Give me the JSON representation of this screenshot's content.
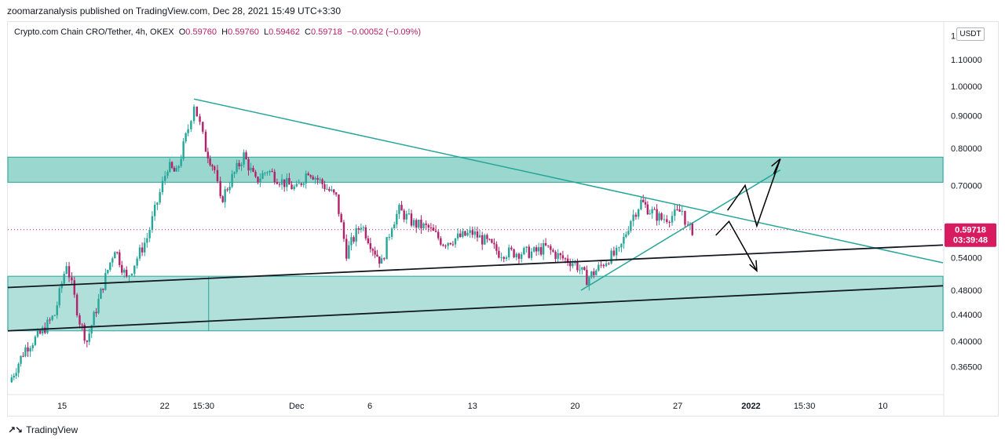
{
  "header": {
    "publisher": "zoomarzanalysis published on TradingView.com, Dec 28, 2021 15:49 UTC+3:30"
  },
  "legend": {
    "symbol": "Crypto.com Chain CRO/Tether, 4h, OKEX",
    "open_key": "O",
    "open": "0.59760",
    "high_key": "H",
    "high": "0.59760",
    "low_key": "L",
    "low": "0.59462",
    "close_key": "C",
    "close": "0.59718",
    "change": "−0.00052 (−0.09%)"
  },
  "axis": {
    "unit_button": "USDT"
  },
  "price_label": {
    "price": "0.59718",
    "countdown": "03:39:48"
  },
  "footer": {
    "brand": "TradingView"
  },
  "colors": {
    "bull": "#26a69a",
    "bear": "#b2216a",
    "zone_fill": "#8fd3c9",
    "trendline": "#26a69a",
    "support": "#131722",
    "price_tag": "#d81b60"
  },
  "chart_data": {
    "type": "candlestick",
    "symbol": "CRO/USDT",
    "interval": "4h",
    "y_scale": "log",
    "ylim": [
      0.33,
      1.26
    ],
    "y_ticks": [
      "1.20000",
      "1.10000",
      "1.00000",
      "0.90000",
      "0.80000",
      "0.70000",
      "0.54000",
      "0.48000",
      "0.44000",
      "0.40000",
      "0.36500"
    ],
    "y_tick_values": [
      1.2,
      1.1,
      1.0,
      0.9,
      0.8,
      0.7,
      0.54,
      0.48,
      0.44,
      0.4,
      0.365
    ],
    "x_ticks": [
      "15",
      "22",
      "15:30",
      "Dec",
      "6",
      "13",
      "20",
      "27",
      "2022",
      "15:30",
      "10"
    ],
    "x_tick_days": [
      15,
      22,
      24.65,
      31,
      36,
      43,
      50,
      57,
      62,
      65.65,
      71
    ],
    "x_range_days": [
      11.3,
      75.1
    ],
    "x_note": "day index counted from Nov 1, 2021",
    "last_price": 0.59718,
    "closes": [
      {
        "d": 11.4,
        "c": 0.345
      },
      {
        "d": 12.5,
        "c": 0.39
      },
      {
        "d": 13.5,
        "c": 0.41
      },
      {
        "d": 14.5,
        "c": 0.44
      },
      {
        "d": 15.3,
        "c": 0.53
      },
      {
        "d": 16.2,
        "c": 0.43
      },
      {
        "d": 16.7,
        "c": 0.4
      },
      {
        "d": 17.8,
        "c": 0.49
      },
      {
        "d": 18.6,
        "c": 0.56
      },
      {
        "d": 19.4,
        "c": 0.5
      },
      {
        "d": 20.3,
        "c": 0.55
      },
      {
        "d": 20.8,
        "c": 0.58
      },
      {
        "d": 21.5,
        "c": 0.66
      },
      {
        "d": 22.2,
        "c": 0.75
      },
      {
        "d": 22.8,
        "c": 0.73
      },
      {
        "d": 23.6,
        "c": 0.86
      },
      {
        "d": 24.0,
        "c": 0.94
      },
      {
        "d": 24.4,
        "c": 0.87
      },
      {
        "d": 24.8,
        "c": 0.8
      },
      {
        "d": 25.4,
        "c": 0.74
      },
      {
        "d": 25.8,
        "c": 0.66
      },
      {
        "d": 26.6,
        "c": 0.72
      },
      {
        "d": 27.4,
        "c": 0.78
      },
      {
        "d": 28.2,
        "c": 0.71
      },
      {
        "d": 29.0,
        "c": 0.74
      },
      {
        "d": 30.0,
        "c": 0.71
      },
      {
        "d": 31.0,
        "c": 0.69
      },
      {
        "d": 31.8,
        "c": 0.74
      },
      {
        "d": 32.6,
        "c": 0.71
      },
      {
        "d": 33.7,
        "c": 0.67
      },
      {
        "d": 34.4,
        "c": 0.55
      },
      {
        "d": 35.4,
        "c": 0.61
      },
      {
        "d": 36.2,
        "c": 0.56
      },
      {
        "d": 36.8,
        "c": 0.53
      },
      {
        "d": 37.5,
        "c": 0.61
      },
      {
        "d": 38.0,
        "c": 0.64
      },
      {
        "d": 39.0,
        "c": 0.61
      },
      {
        "d": 40.0,
        "c": 0.6
      },
      {
        "d": 41.0,
        "c": 0.57
      },
      {
        "d": 42.0,
        "c": 0.58
      },
      {
        "d": 43.0,
        "c": 0.59
      },
      {
        "d": 44.0,
        "c": 0.57
      },
      {
        "d": 44.8,
        "c": 0.55
      },
      {
        "d": 46.0,
        "c": 0.55
      },
      {
        "d": 47.2,
        "c": 0.55
      },
      {
        "d": 48.0,
        "c": 0.56
      },
      {
        "d": 49.0,
        "c": 0.54
      },
      {
        "d": 50.0,
        "c": 0.53
      },
      {
        "d": 50.8,
        "c": 0.5
      },
      {
        "d": 51.6,
        "c": 0.52
      },
      {
        "d": 52.3,
        "c": 0.54
      },
      {
        "d": 53.0,
        "c": 0.55
      },
      {
        "d": 53.8,
        "c": 0.62
      },
      {
        "d": 54.5,
        "c": 0.66
      },
      {
        "d": 55.1,
        "c": 0.64
      },
      {
        "d": 55.9,
        "c": 0.62
      },
      {
        "d": 56.8,
        "c": 0.63
      },
      {
        "d": 57.3,
        "c": 0.64
      },
      {
        "d": 57.7,
        "c": 0.6
      },
      {
        "d": 58.0,
        "c": 0.597
      }
    ]
  }
}
